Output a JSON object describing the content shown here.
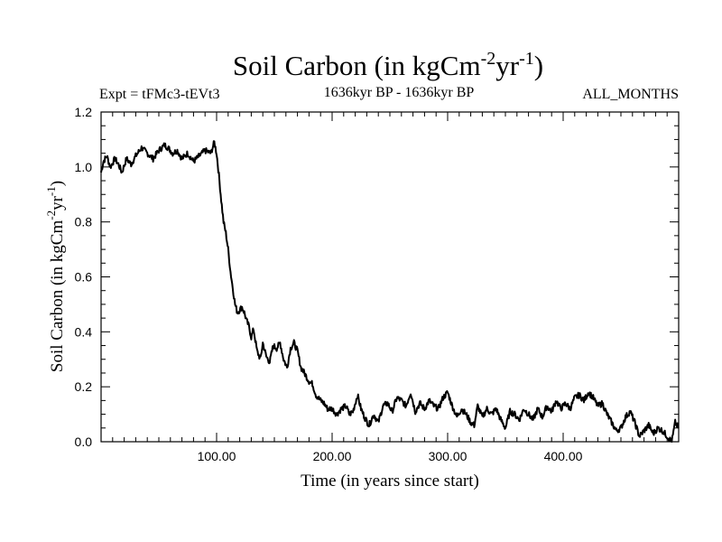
{
  "chart_data": {
    "type": "line",
    "title": {
      "prefix": "Soil Carbon (in kgCm",
      "exp1": "-2",
      "mid": "yr",
      "exp2": "-1",
      "suffix": ")"
    },
    "subtitle_left": "Expt = tFMc3-tEVt3",
    "subtitle_center": "1636kyr BP - 1636kyr BP",
    "subtitle_right": "ALL_MONTHS",
    "xlabel": "Time (in years since start)",
    "ylabel": {
      "prefix": "Soil Carbon (in kgCm",
      "exp1": "-2",
      "mid": "yr",
      "exp2": "-1",
      "suffix": ")"
    },
    "xlim": [
      0,
      500
    ],
    "ylim": [
      0,
      1.2
    ],
    "x_ticks": [
      {
        "value": 100,
        "label": "100.00"
      },
      {
        "value": 200,
        "label": "200.00"
      },
      {
        "value": 300,
        "label": "300.00"
      },
      {
        "value": 400,
        "label": "400.00"
      }
    ],
    "y_ticks": [
      {
        "value": 0.0,
        "label": "0.0"
      },
      {
        "value": 0.2,
        "label": "0.2"
      },
      {
        "value": 0.4,
        "label": "0.4"
      },
      {
        "value": 0.6,
        "label": "0.6"
      },
      {
        "value": 0.8,
        "label": "0.8"
      },
      {
        "value": 1.0,
        "label": "1.0"
      },
      {
        "value": 1.2,
        "label": "1.2"
      }
    ],
    "series": [
      {
        "name": "Soil Carbon",
        "color": "#000000",
        "x": [
          0,
          2,
          5,
          8,
          12,
          15,
          18,
          22,
          26,
          30,
          35,
          40,
          45,
          50,
          55,
          58,
          62,
          66,
          70,
          75,
          80,
          85,
          90,
          95,
          98,
          100,
          102,
          104,
          106,
          108,
          110,
          112,
          114,
          116,
          118,
          120,
          122,
          124,
          126,
          128,
          130,
          132,
          135,
          138,
          140,
          143,
          146,
          149,
          152,
          155,
          158,
          161,
          164,
          167,
          170,
          173,
          176,
          180,
          183,
          186,
          190,
          193,
          196,
          200,
          204,
          208,
          212,
          215,
          218,
          222,
          225,
          228,
          232,
          236,
          240,
          244,
          248,
          252,
          256,
          260,
          264,
          268,
          272,
          276,
          280,
          284,
          288,
          292,
          296,
          300,
          304,
          308,
          312,
          316,
          320,
          323,
          326,
          330,
          334,
          338,
          342,
          346,
          350,
          354,
          358,
          362,
          366,
          370,
          374,
          378,
          382,
          386,
          390,
          394,
          398,
          402,
          406,
          410,
          414,
          418,
          422,
          426,
          430,
          434,
          438,
          442,
          446,
          450,
          454,
          458,
          462,
          466,
          470,
          474,
          478,
          482,
          486,
          490,
          494,
          497,
          500
        ],
        "y": [
          0.98,
          1.02,
          1.04,
          1.0,
          1.03,
          1.01,
          0.98,
          1.03,
          1.01,
          1.04,
          1.07,
          1.05,
          1.03,
          1.06,
          1.08,
          1.07,
          1.05,
          1.06,
          1.03,
          1.05,
          1.02,
          1.04,
          1.06,
          1.05,
          1.09,
          1.05,
          0.97,
          0.88,
          0.8,
          0.76,
          0.7,
          0.62,
          0.56,
          0.5,
          0.47,
          0.48,
          0.49,
          0.47,
          0.44,
          0.42,
          0.38,
          0.41,
          0.33,
          0.3,
          0.36,
          0.31,
          0.29,
          0.35,
          0.34,
          0.36,
          0.3,
          0.27,
          0.34,
          0.36,
          0.33,
          0.27,
          0.25,
          0.22,
          0.21,
          0.17,
          0.15,
          0.14,
          0.12,
          0.12,
          0.1,
          0.12,
          0.13,
          0.1,
          0.11,
          0.17,
          0.12,
          0.09,
          0.06,
          0.1,
          0.07,
          0.13,
          0.14,
          0.11,
          0.16,
          0.15,
          0.13,
          0.18,
          0.11,
          0.14,
          0.12,
          0.15,
          0.13,
          0.12,
          0.16,
          0.18,
          0.13,
          0.09,
          0.12,
          0.1,
          0.07,
          0.06,
          0.13,
          0.09,
          0.12,
          0.1,
          0.12,
          0.08,
          0.05,
          0.11,
          0.1,
          0.08,
          0.12,
          0.1,
          0.08,
          0.12,
          0.09,
          0.13,
          0.11,
          0.15,
          0.12,
          0.14,
          0.12,
          0.16,
          0.17,
          0.15,
          0.18,
          0.16,
          0.13,
          0.14,
          0.1,
          0.07,
          0.04,
          0.05,
          0.09,
          0.11,
          0.07,
          0.02,
          0.04,
          0.06,
          0.03,
          0.05,
          0.04,
          0.02,
          0.0,
          0.07,
          0.05
        ]
      }
    ]
  }
}
